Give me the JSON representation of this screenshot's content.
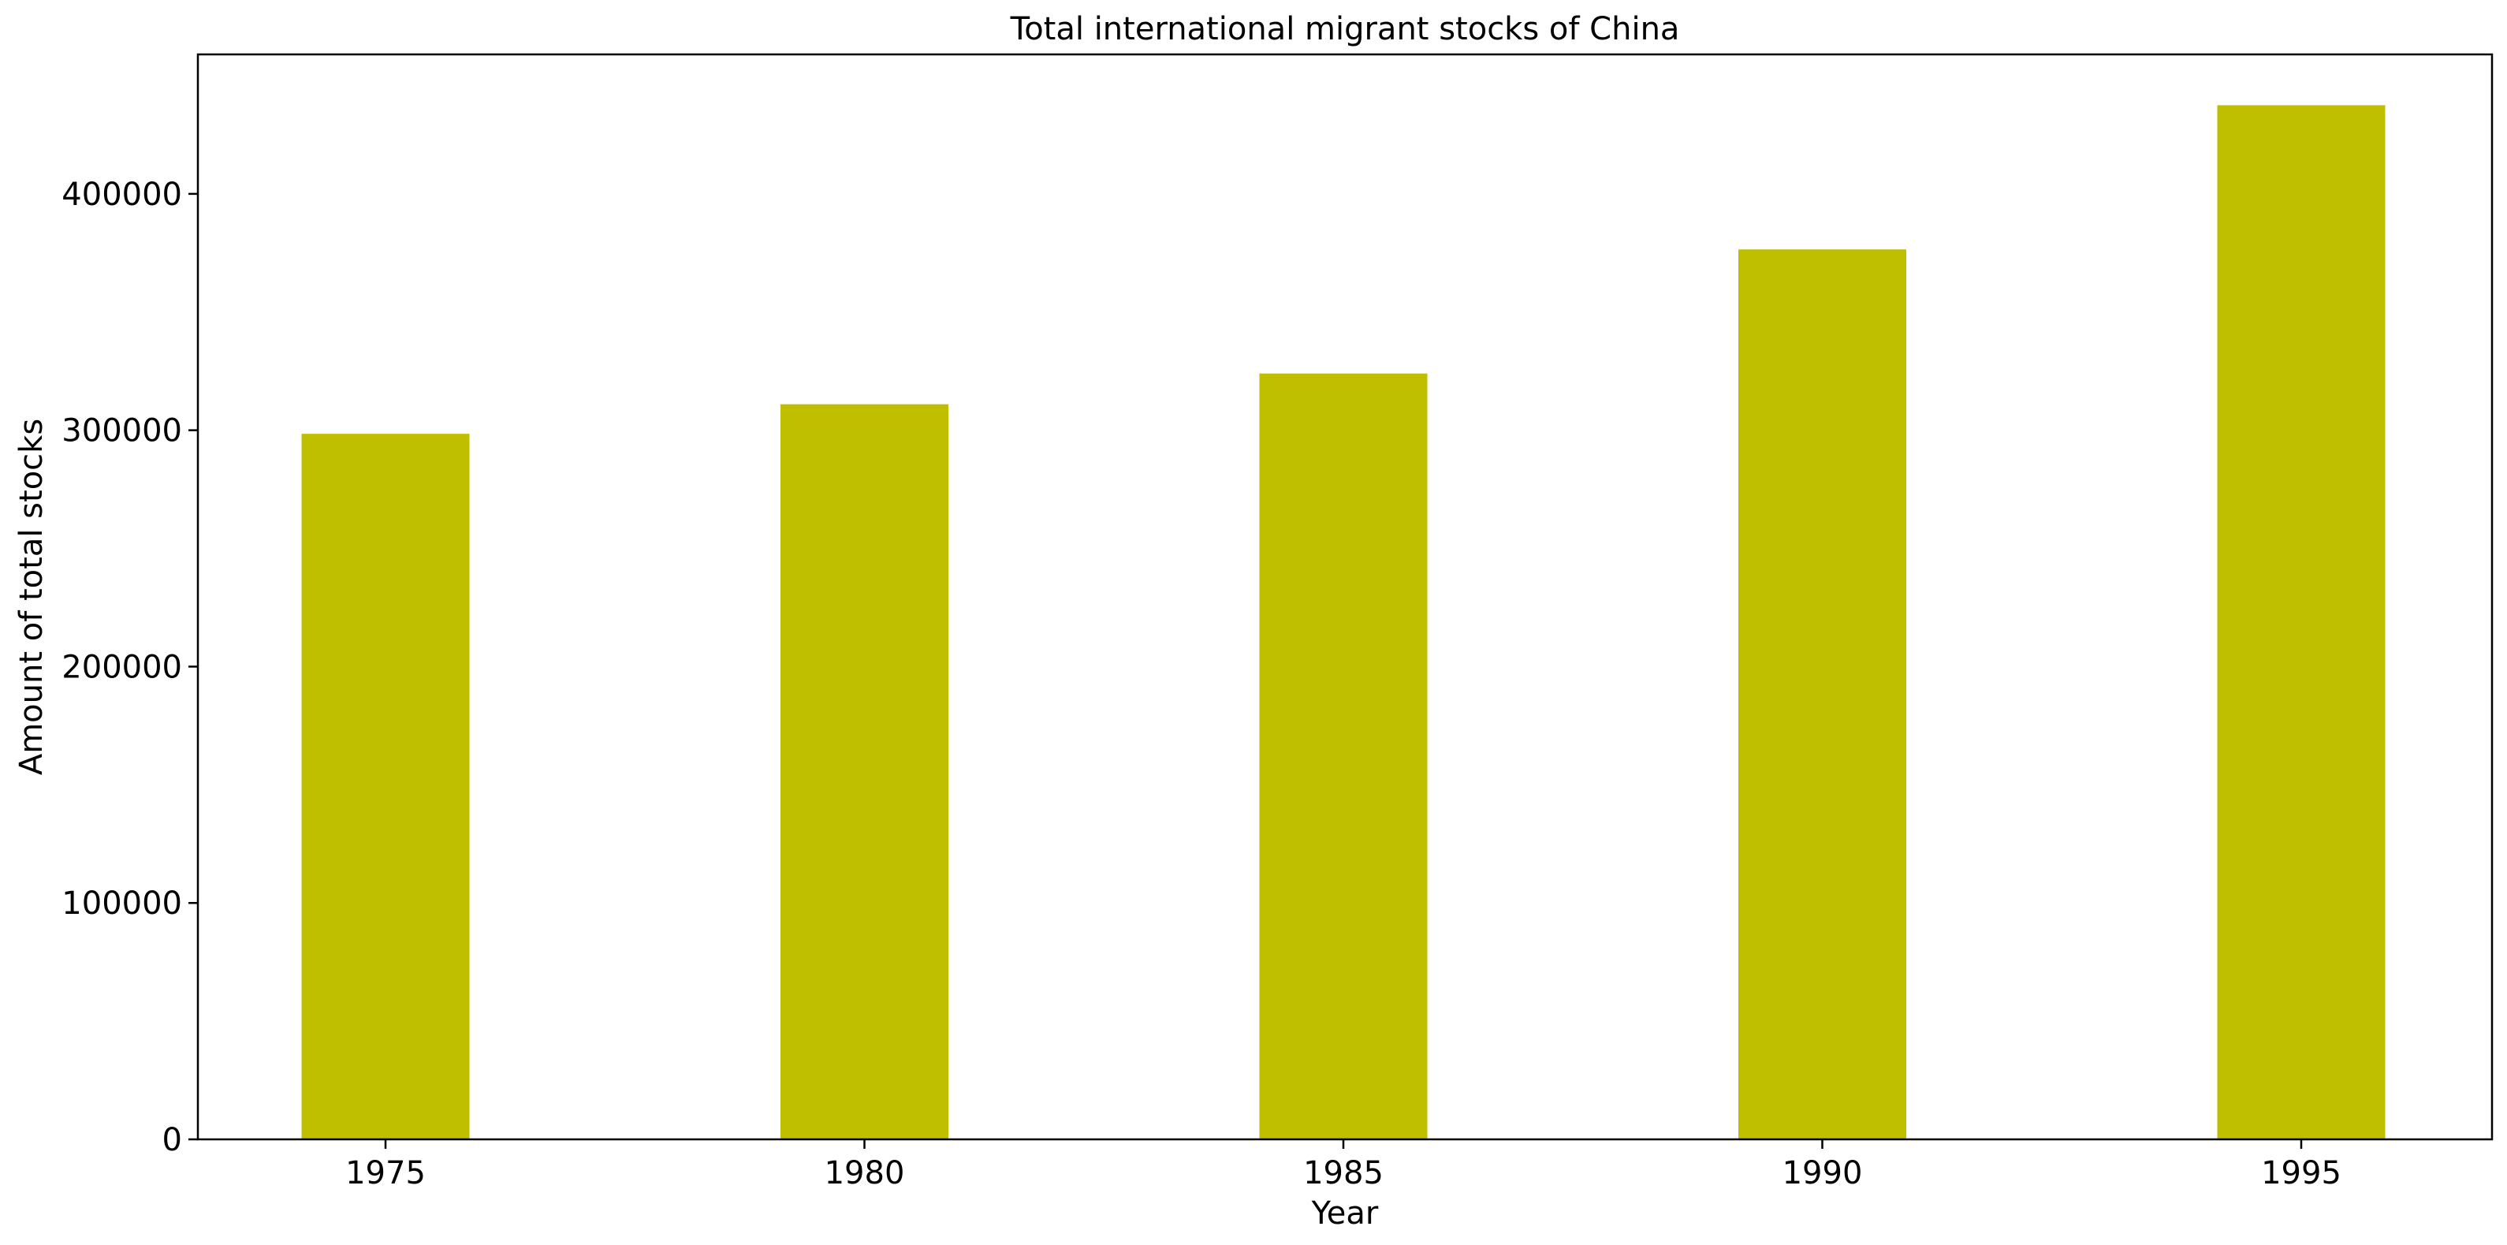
{
  "chart_data": {
    "type": "bar",
    "title": "Total international migrant stocks of China",
    "xlabel": "Year",
    "ylabel": "Amount of total stocks",
    "categories": [
      "1975",
      "1980",
      "1985",
      "1990",
      "1995"
    ],
    "values": [
      298500,
      311000,
      324000,
      376500,
      437500
    ],
    "ylim": [
      0,
      459000
    ],
    "yticks": [
      0,
      100000,
      200000,
      300000,
      400000
    ],
    "grid": false,
    "bar_color": "#bfbf00"
  }
}
